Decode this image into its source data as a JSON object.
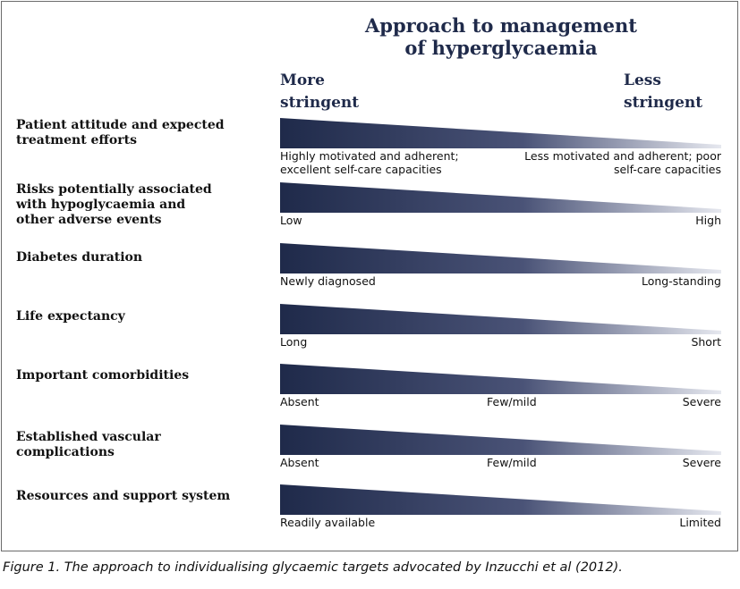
{
  "title": "Approach to management of hyperglycaemia",
  "title_lines": [
    "Approach to management",
    "of hyperglycaemia"
  ],
  "scale": {
    "left_lines": [
      "More",
      "stringent"
    ],
    "right_lines": [
      "Less",
      "stringent"
    ]
  },
  "colors": {
    "wedge_dark": "#1f2a4a",
    "wedge_light": "#e6e8ef",
    "title": "#1f2a4a",
    "border": "#6b6b6b"
  },
  "rows": [
    {
      "factor_lines": [
        "Patient attitude and expected",
        "treatment efforts"
      ],
      "left_lines": [
        "Highly motivated and adherent;",
        "excellent self-care capacities"
      ],
      "mid": "",
      "right_lines": [
        "Less motivated and adherent; poor",
        "self-care capacities"
      ]
    },
    {
      "factor_lines": [
        "Risks potentially associated",
        "with hypoglycaemia and",
        "other adverse events"
      ],
      "left_lines": [
        "Low"
      ],
      "mid": "",
      "right_lines": [
        "High"
      ]
    },
    {
      "factor_lines": [
        "Diabetes duration"
      ],
      "left_lines": [
        "Newly diagnosed"
      ],
      "mid": "",
      "right_lines": [
        "Long-standing"
      ]
    },
    {
      "factor_lines": [
        "Life expectancy"
      ],
      "left_lines": [
        "Long"
      ],
      "mid": "",
      "right_lines": [
        "Short"
      ]
    },
    {
      "factor_lines": [
        "Important comorbidities"
      ],
      "left_lines": [
        "Absent"
      ],
      "mid": "Few/mild",
      "right_lines": [
        "Severe"
      ]
    },
    {
      "factor_lines": [
        "Established vascular",
        "complications"
      ],
      "left_lines": [
        "Absent"
      ],
      "mid": "Few/mild",
      "right_lines": [
        "Severe"
      ]
    },
    {
      "factor_lines": [
        "Resources and support system"
      ],
      "left_lines": [
        "Readily available"
      ],
      "mid": "",
      "right_lines": [
        "Limited"
      ]
    }
  ],
  "caption": "Figure 1. The approach to individualising glycaemic targets advocated by Inzucchi et al (2012)."
}
